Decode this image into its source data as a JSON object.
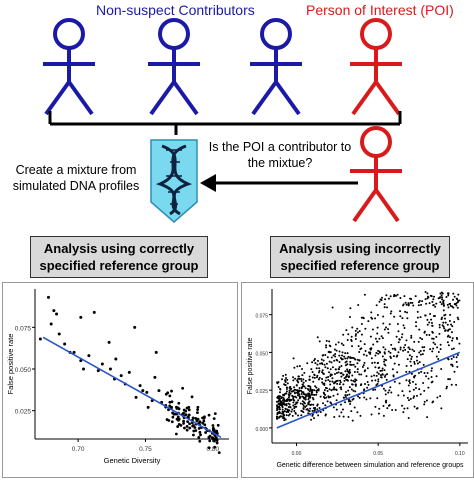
{
  "diagram": {
    "non_suspect_label": "Non-suspect Contributors",
    "poi_label": "Person of Interest (POI)",
    "question_line1": "Is the POI a contributor to",
    "question_line2": "the mixtue?",
    "mixture_line1": "Create a mixture from",
    "mixture_line2": "simulated DNA profiles",
    "colors": {
      "non_suspect": "#1a1aa6",
      "poi": "#d91a1a"
    }
  },
  "panels": {
    "left_title_line1": "Analysis using correctly",
    "left_title_line2": "specified reference group",
    "right_title_line1": "Analysis using incorrectly",
    "right_title_line2": "specified reference group"
  },
  "chart_data": [
    {
      "type": "scatter",
      "xlabel": "Genetic Diversity",
      "ylabel": "False positive rate",
      "xticks": [
        "0.70",
        "0.75",
        "0.80"
      ],
      "yticks": [
        "0.025",
        "0.050",
        "0.075"
      ],
      "xlim": [
        0.668,
        0.812
      ],
      "ylim": [
        0.008,
        0.098
      ],
      "trend": [
        [
          0.674,
          0.069
        ],
        [
          0.806,
          0.009
        ]
      ],
      "points": [
        [
          0.678,
          0.093
        ],
        [
          0.682,
          0.085
        ],
        [
          0.68,
          0.077
        ],
        [
          0.684,
          0.083
        ],
        [
          0.69,
          0.065
        ],
        [
          0.694,
          0.06
        ],
        [
          0.686,
          0.071
        ],
        [
          0.702,
          0.081
        ],
        [
          0.712,
          0.084
        ],
        [
          0.723,
          0.066
        ],
        [
          0.728,
          0.056
        ],
        [
          0.742,
          0.075
        ],
        [
          0.758,
          0.06
        ],
        [
          0.697,
          0.06
        ],
        [
          0.708,
          0.058
        ],
        [
          0.718,
          0.053
        ],
        [
          0.724,
          0.05
        ],
        [
          0.732,
          0.046
        ],
        [
          0.738,
          0.048
        ],
        [
          0.704,
          0.05
        ],
        [
          0.746,
          0.04
        ],
        [
          0.751,
          0.036
        ],
        [
          0.755,
          0.031
        ],
        [
          0.752,
          0.027
        ],
        [
          0.757,
          0.045
        ],
        [
          0.748,
          0.037
        ],
        [
          0.715,
          0.049
        ],
        [
          0.735,
          0.041
        ],
        [
          0.762,
          0.03
        ],
        [
          0.727,
          0.044
        ],
        [
          0.702,
          0.055
        ],
        [
          0.672,
          0.068
        ],
        [
          0.743,
          0.033
        ],
        [
          0.76,
          0.037
        ]
      ]
    },
    {
      "type": "scatter",
      "xlabel": "Genetic difference between simulation and reference groups",
      "ylabel": "False positive rate",
      "xticks": [
        "0.00",
        "0.05",
        "0.10"
      ],
      "yticks": [
        "0.000",
        "0.025",
        "0.050",
        "0.075"
      ],
      "xlim": [
        -0.015,
        0.105
      ],
      "ylim": [
        -0.01,
        0.092
      ],
      "trend": [
        [
          -0.012,
          0.0
        ],
        [
          0.1,
          0.05
        ]
      ]
    }
  ]
}
